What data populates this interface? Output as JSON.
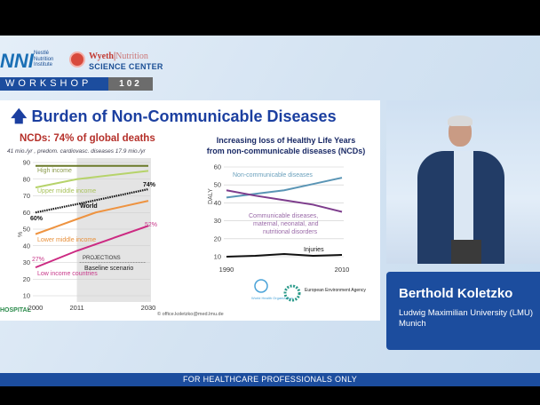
{
  "header": {
    "nni_logo": "NNI",
    "nestle_lines": [
      "Nestlé",
      "Nutrition",
      "Institute"
    ],
    "wyeth": "Wyeth",
    "wyeth_nutrition": "Nutrition",
    "science_center": "SCIENCE CENTER",
    "workshop": "WORKSHOP",
    "workshop_number": "102"
  },
  "slide": {
    "title": "Burden of Non-Communicable Diseases",
    "copyright": "© office.koletzko@med.lmu.de",
    "hospital": "HOSPITAL"
  },
  "footer": {
    "text": "FOR HEALTHCARE PROFESSIONALS ONLY"
  },
  "speaker": {
    "name": "Berthold Koletzko",
    "affiliation_line1": "Ludwig Maximilian University (LMU)",
    "affiliation_line2": "Munich"
  },
  "chart_data": [
    {
      "type": "line",
      "title": "NCDs: 74% of global deaths",
      "subtitle": "41 mio./yr , predom. cardiovasc. diseases 17.9 mio./yr",
      "ylabel": "%",
      "xlim": [
        2000,
        2030
      ],
      "ylim": [
        10,
        90
      ],
      "yticks": [
        10,
        20,
        30,
        40,
        50,
        60,
        70,
        80,
        90
      ],
      "xticks": [
        2000,
        2011,
        2030
      ],
      "projection": {
        "from": 2011,
        "to": 2030,
        "label1": "PROJECTIONS",
        "label2": "Baseline scenario"
      },
      "series": [
        {
          "name": "High income",
          "color": "#6b7a2a",
          "x": [
            2000,
            2011,
            2030
          ],
          "y": [
            88,
            88,
            88
          ]
        },
        {
          "name": "Upper middle income",
          "color": "#b6d36a",
          "x": [
            2000,
            2011,
            2030
          ],
          "y": [
            75,
            80,
            85
          ]
        },
        {
          "name": "World",
          "color": "#111111",
          "dashed": true,
          "x": [
            2000,
            2011,
            2030
          ],
          "y": [
            60,
            65,
            74
          ]
        },
        {
          "name": "Lower middle income",
          "color": "#ee9340",
          "x": [
            2000,
            2011,
            2016,
            2030
          ],
          "y": [
            47,
            56,
            60,
            67
          ]
        },
        {
          "name": "Low income countries",
          "color": "#cc2a82",
          "x": [
            2000,
            2011,
            2030
          ],
          "y": [
            27,
            37,
            52
          ]
        }
      ],
      "annotations": {
        "start": "60%",
        "end": "74%",
        "low_start": "27%",
        "low_end": "52%"
      }
    },
    {
      "type": "line",
      "title_line1": "Increasing loss of Healthy Life Years",
      "title_line2": "from non-communicable diseases (NCDs)",
      "ylabel": "DALY",
      "xlim": [
        1990,
        2010
      ],
      "ylim": [
        10,
        60
      ],
      "yticks": [
        10,
        20,
        30,
        40,
        50,
        60
      ],
      "xticks": [
        1990,
        2010
      ],
      "series": [
        {
          "name": "Non-communicable diseases",
          "color": "#5a95b5",
          "x": [
            1990,
            1995,
            2000,
            2005,
            2010
          ],
          "y": [
            43,
            45,
            47,
            50.5,
            54
          ]
        },
        {
          "name": "Communicable diseases, maternal, neonatal, and nutritional disorders",
          "color": "#7d3c8c",
          "x": [
            1990,
            1995,
            2000,
            2005,
            2010
          ],
          "y": [
            47,
            44,
            41.5,
            39,
            35
          ]
        },
        {
          "name": "Injuries",
          "color": "#111111",
          "x": [
            1990,
            1995,
            2000,
            2005,
            2010
          ],
          "y": [
            10,
            10.5,
            11.5,
            10.5,
            11
          ]
        }
      ],
      "logos": [
        "World Health Organization",
        "European Environment Agency"
      ]
    }
  ]
}
